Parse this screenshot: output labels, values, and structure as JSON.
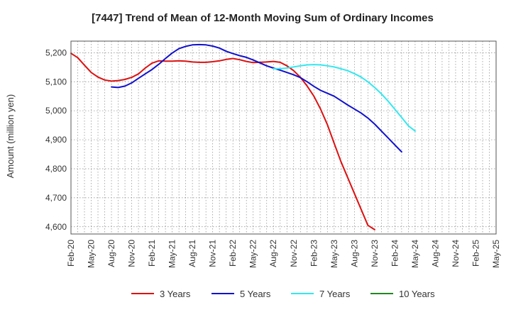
{
  "chart_data": {
    "type": "line",
    "title": "[7447]  Trend of Mean of 12-Month Moving Sum of Ordinary Incomes",
    "ylabel": "Amount (million yen)",
    "xlabel": "",
    "ylim": [
      4575,
      5240
    ],
    "yticks": [
      4600,
      4700,
      4800,
      4900,
      5000,
      5100,
      5200
    ],
    "ytick_labels": [
      "4,600",
      "4,700",
      "4,800",
      "4,900",
      "5,000",
      "5,100",
      "5,200"
    ],
    "x_categories": [
      "Feb-20",
      "May-20",
      "Aug-20",
      "Nov-20",
      "Feb-21",
      "May-21",
      "Aug-21",
      "Nov-21",
      "Feb-22",
      "May-22",
      "Aug-22",
      "Nov-22",
      "Feb-23",
      "May-23",
      "Aug-23",
      "Nov-23",
      "Feb-24",
      "May-24",
      "Aug-24",
      "Nov-24",
      "Feb-25",
      "May-25"
    ],
    "grid": true,
    "legend_position": "bottom",
    "series": [
      {
        "name": "3 Years",
        "color": "#dd1111",
        "start_index": 0,
        "values": [
          5198,
          5183,
          5157,
          5132,
          5116,
          5106,
          5102,
          5104,
          5108,
          5115,
          5127,
          5147,
          5164,
          5172,
          5171,
          5171,
          5172,
          5171,
          5168,
          5167,
          5167,
          5169,
          5172,
          5177,
          5180,
          5176,
          5170,
          5166,
          5167,
          5168,
          5170,
          5167,
          5155,
          5138,
          5115,
          5085,
          5050,
          5005,
          4952,
          4888,
          4825,
          4770,
          4715,
          4660,
          4605,
          4590
        ]
      },
      {
        "name": "5 Years",
        "color": "#1111cc",
        "start_index": 6,
        "values": [
          5082,
          5080,
          5085,
          5096,
          5112,
          5127,
          5142,
          5160,
          5180,
          5199,
          5214,
          5222,
          5227,
          5228,
          5227,
          5223,
          5216,
          5205,
          5197,
          5190,
          5184,
          5175,
          5165,
          5155,
          5147,
          5140,
          5132,
          5124,
          5114,
          5100,
          5084,
          5070,
          5060,
          5050,
          5035,
          5020,
          5006,
          4992,
          4975,
          4954,
          4930,
          4906,
          4882,
          4858
        ]
      },
      {
        "name": "7 Years",
        "color": "#33e8f0",
        "start_index": 30,
        "values": [
          5145,
          5145,
          5147,
          5151,
          5155,
          5158,
          5159,
          5158,
          5155,
          5151,
          5145,
          5138,
          5128,
          5116,
          5100,
          5080,
          5058,
          5033,
          5005,
          4977,
          4948,
          4930
        ]
      },
      {
        "name": "10 Years",
        "color": "#228822",
        "start_index": 0,
        "values": []
      }
    ]
  }
}
